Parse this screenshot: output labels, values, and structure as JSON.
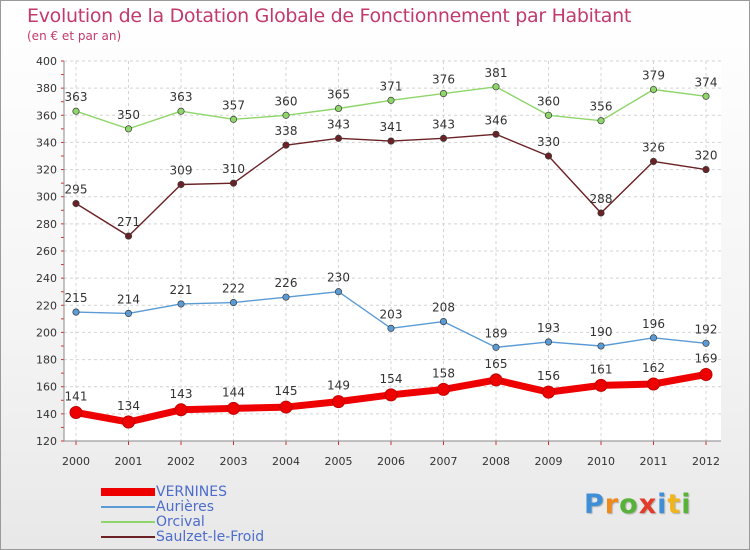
{
  "header": {
    "title": "Evolution de la Dotation Globale de Fonctionnement par Habitant",
    "subtitle": "(en € et par an)"
  },
  "brand": {
    "letters": [
      {
        "ch": "P",
        "color": "#3f8fd6"
      },
      {
        "ch": "r",
        "color": "#f08a1c"
      },
      {
        "ch": "o",
        "color": "#58b23a"
      },
      {
        "ch": "x",
        "color": "#e23b2a"
      },
      {
        "ch": "i",
        "color": "#3f8fd6"
      },
      {
        "ch": "t",
        "color": "#f0b51c"
      },
      {
        "ch": "i",
        "color": "#58b23a"
      }
    ]
  },
  "chart_data": {
    "type": "line",
    "title": "Evolution de la Dotation Globale de Fonctionnement par Habitant",
    "subtitle": "(en € et par an)",
    "categories": [
      "2000",
      "2001",
      "2002",
      "2003",
      "2004",
      "2005",
      "2006",
      "2007",
      "2008",
      "2009",
      "2010",
      "2011",
      "2012"
    ],
    "ylim": [
      120,
      400
    ],
    "yticks": [
      120,
      140,
      160,
      180,
      200,
      220,
      240,
      260,
      280,
      300,
      320,
      340,
      360,
      380,
      400
    ],
    "grid": true,
    "legend_position": "bottom-left",
    "series": [
      {
        "name": "VERNINES",
        "color": "#ee0000",
        "thick": true,
        "values": [
          141,
          134,
          143,
          144,
          145,
          149,
          154,
          158,
          165,
          156,
          161,
          162,
          169
        ]
      },
      {
        "name": "Aurières",
        "color": "#5b9bd5",
        "thick": false,
        "values": [
          215,
          214,
          221,
          222,
          226,
          230,
          203,
          208,
          189,
          193,
          190,
          196,
          192
        ]
      },
      {
        "name": "Orcival",
        "color": "#8fd66a",
        "thick": false,
        "values": [
          363,
          350,
          363,
          357,
          360,
          365,
          371,
          376,
          381,
          360,
          356,
          379,
          374
        ]
      },
      {
        "name": "Saulzet-le-Froid",
        "color": "#6b2226",
        "thick": false,
        "values": [
          295,
          271,
          309,
          310,
          338,
          343,
          341,
          343,
          346,
          330,
          288,
          326,
          320
        ]
      }
    ]
  }
}
